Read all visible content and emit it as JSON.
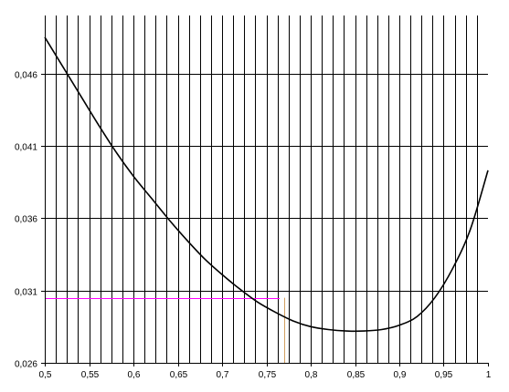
{
  "chart_data": {
    "type": "line",
    "title": "",
    "xlabel": "",
    "ylabel": "",
    "xlim": [
      0.5,
      1.0
    ],
    "ylim": [
      0.026,
      0.05
    ],
    "x_ticks": [
      0.5,
      0.55,
      0.6,
      0.65,
      0.7,
      0.75,
      0.8,
      0.85,
      0.9,
      0.95,
      1.0
    ],
    "x_tick_labels": [
      "0,5",
      "0,55",
      "0,6",
      "0,65",
      "0,7",
      "0,75",
      "0,8",
      "0,85",
      "0,9",
      "0,95",
      "1"
    ],
    "y_ticks": [
      0.026,
      0.031,
      0.036,
      0.041,
      0.046
    ],
    "y_tick_labels": [
      "0,026",
      "0,031",
      "0,036",
      "0,041",
      "0,046"
    ],
    "x_minor_step": 0.0125,
    "grid": true,
    "series": [
      {
        "color": "#000000",
        "x": [
          0.5,
          0.52,
          0.54,
          0.56,
          0.58,
          0.6,
          0.62,
          0.64,
          0.66,
          0.68,
          0.7,
          0.72,
          0.74,
          0.76,
          0.78,
          0.8,
          0.82,
          0.84,
          0.86,
          0.88,
          0.9,
          0.92,
          0.94,
          0.96,
          0.98,
          1.0
        ],
        "y": [
          0.0485,
          0.0465,
          0.0445,
          0.0425,
          0.0406,
          0.0389,
          0.0374,
          0.0359,
          0.0345,
          0.0332,
          0.0321,
          0.0311,
          0.0302,
          0.0295,
          0.0289,
          0.0285,
          0.0283,
          0.0282,
          0.0282,
          0.0283,
          0.0286,
          0.0292,
          0.0305,
          0.0325,
          0.0352,
          0.0393
        ]
      }
    ],
    "annotations": [
      {
        "type": "horizontal-guide",
        "y": 0.0305,
        "x_from": 0.5,
        "x_to": 0.765,
        "color": "#ff00ff"
      },
      {
        "type": "vertical-guide",
        "x": 0.77,
        "y_from": 0.026,
        "y_to": 0.0305,
        "color": "#d2a060"
      }
    ]
  }
}
